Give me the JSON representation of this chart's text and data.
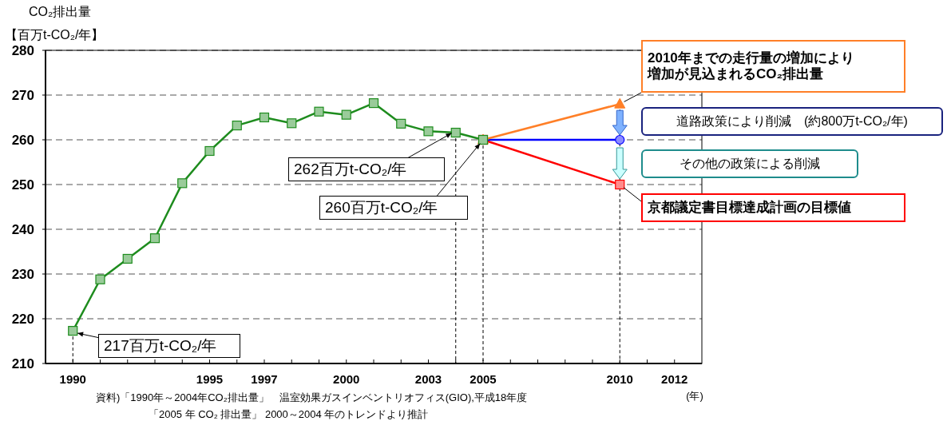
{
  "chart_data": {
    "type": "line",
    "ylabel": "CO₂排出量",
    "xlabel": "(年)",
    "xlim": [
      1989,
      2013
    ],
    "xticks": [
      1990,
      {
        "value": 1991,
        "label": null
      },
      {
        "value": 1992,
        "label": null
      },
      {
        "value": 1993,
        "label": null
      },
      {
        "value": 1994,
        "label": null
      },
      1995,
      {
        "value": 1996,
        "label": null
      },
      1997,
      {
        "value": 1998,
        "label": null
      },
      {
        "value": 1999,
        "label": null
      },
      2000,
      {
        "value": 2001,
        "label": null
      },
      {
        "value": 2002,
        "label": null
      },
      2003,
      {
        "value": 2004,
        "label": null
      },
      2005,
      {
        "value": 2006,
        "label": null
      },
      {
        "value": 2007,
        "label": null
      },
      {
        "value": 2008,
        "label": null
      },
      {
        "value": 2009,
        "label": null
      },
      2010,
      {
        "value": 2011,
        "label": null
      },
      2012
    ],
    "ylim": [
      210,
      280
    ],
    "yticks": [
      210,
      220,
      230,
      240,
      250,
      260,
      270,
      280
    ],
    "grid": "y",
    "series": [
      {
        "color": "#1e8c1e",
        "marker": "square",
        "x": [
          1990,
          1991,
          1992,
          1993,
          1994,
          1995,
          1996,
          1997,
          1998,
          1999,
          2000,
          2001,
          2002,
          2003,
          2004,
          2005
        ],
        "values": [
          217.3,
          228.8,
          233.4,
          238.0,
          250.3,
          257.5,
          263.2,
          265.0,
          263.7,
          266.3,
          265.6,
          268.2,
          263.6,
          261.9,
          261.6,
          260.0
        ]
      },
      {
        "color": "#ff7f27",
        "marker": "triangle",
        "x": [
          2005,
          2010
        ],
        "values": [
          260,
          268
        ]
      },
      {
        "color": "#0000ff",
        "marker": "circle",
        "x": [
          2005,
          2010
        ],
        "values": [
          260,
          260
        ]
      },
      {
        "color": "#ff0000",
        "marker": "square",
        "x": [
          2005,
          2010
        ],
        "values": [
          260,
          250
        ]
      }
    ],
    "ref_lines": [
      {
        "axis": "x",
        "value": 1990,
        "line_style": "dashed",
        "color": "#000000"
      },
      {
        "axis": "x",
        "value": 2004,
        "line_style": "dashed",
        "color": "#000000"
      },
      {
        "axis": "x",
        "value": 2005,
        "line_style": "dashed",
        "color": "#000000"
      },
      {
        "axis": "x",
        "value": 2010,
        "line_style": "dashed",
        "color": "#000000"
      }
    ],
    "annotations": [
      {
        "text": "217百万t-CO₂/年",
        "x": 1990,
        "y": 217
      },
      {
        "text": "262百万t-CO₂/年",
        "x": 2004,
        "y": 262
      },
      {
        "text": "260百万t-CO₂/年",
        "x": 2005,
        "y": 260
      },
      {
        "text": "2010年までの走行量の増加により増加が見込まれるCO₂排出量",
        "x": 2010,
        "y": 268
      },
      "道路政策により削減　(約800万t-CO₂/年)",
      "その他の政策による削減",
      {
        "text": "京都議定書目標達成計画の目標値",
        "x": 2010,
        "y": 250
      },
      "資料)「1990年～2004年CO₂排出量」　温室効果ガスインベントリオフィス(GIO),平成18年度",
      "「2005 年 CO₂ 排出量」 2000～2004 年のトレンドより推計",
      "【百万t-CO₂/年】"
    ]
  }
}
